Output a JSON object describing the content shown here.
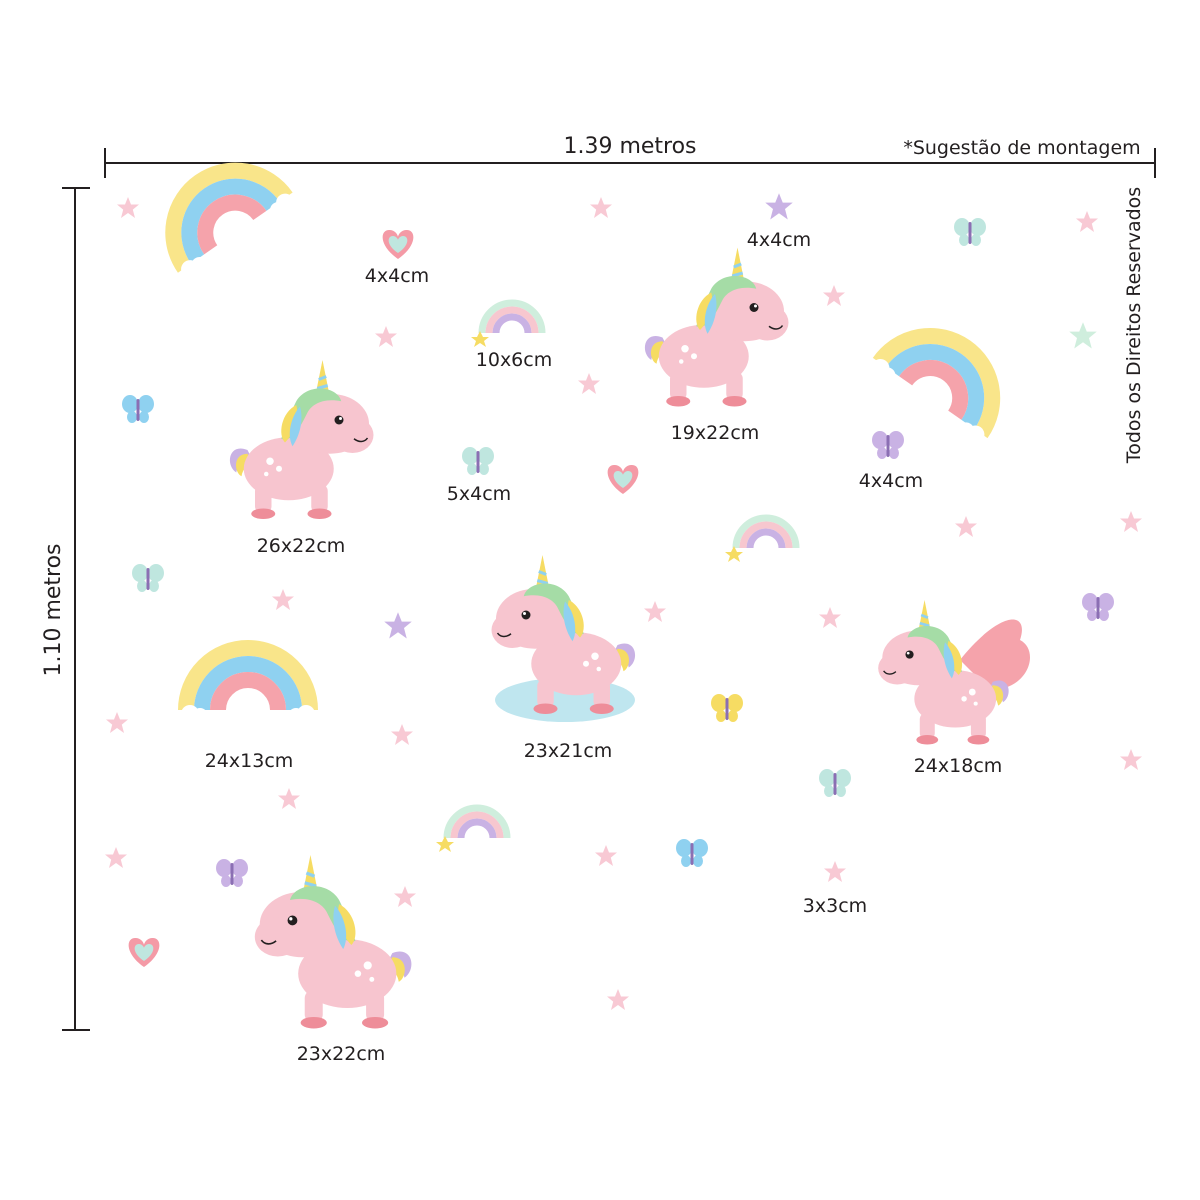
{
  "dimensions": {
    "width": "1.39 metros",
    "height": "1.10 metros"
  },
  "note": "*Sugestão de montagem",
  "copyright": "Todos os Direitos Reservados",
  "items": [
    {
      "label": "4x4cm"
    },
    {
      "label": "4x4cm"
    },
    {
      "label": "10x6cm"
    },
    {
      "label": "19x22cm"
    },
    {
      "label": "4x4cm"
    },
    {
      "label": "26x22cm"
    },
    {
      "label": "5x4cm"
    },
    {
      "label": "24x13cm"
    },
    {
      "label": "23x21cm"
    },
    {
      "label": "24x18cm"
    },
    {
      "label": "3x3cm"
    },
    {
      "label": "23x22cm"
    }
  ]
}
